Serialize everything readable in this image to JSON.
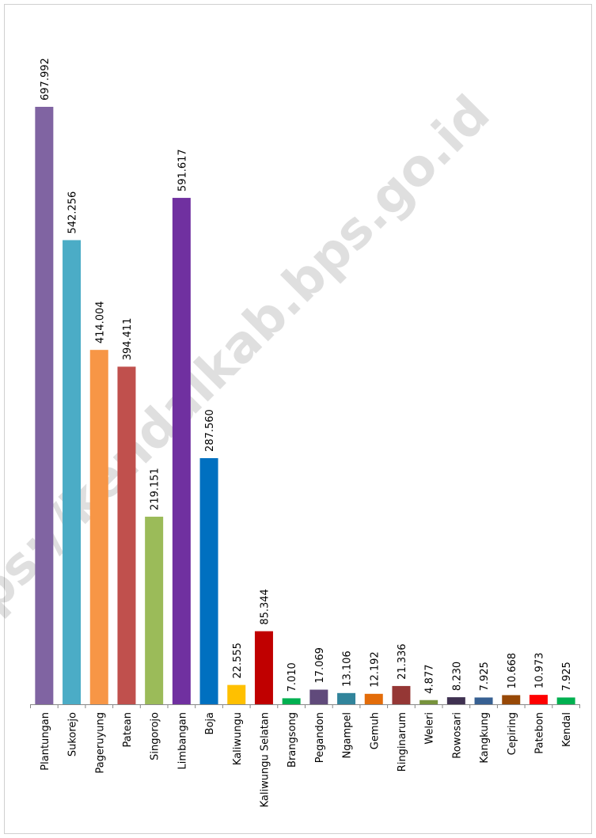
{
  "chart_data": {
    "type": "bar",
    "watermark": "https://kendalkab.bps.go.id",
    "categories": [
      "Plantungan",
      "Sukorejo",
      "Pageruyung",
      "Patean",
      "Singorojo",
      "Limbangan",
      "Boja",
      "Kaliwungu",
      "Kaliwungu Selatan",
      "Brangsong",
      "Pegandon",
      "Ngampel",
      "Gemuh",
      "Ringinarum",
      "Weleri",
      "Rowosari",
      "Kangkung",
      "Cepiring",
      "Patebon",
      "Kendal"
    ],
    "values": [
      697992,
      542256,
      414004,
      394411,
      219151,
      591617,
      287560,
      22555,
      85344,
      7010,
      17069,
      13106,
      12192,
      21336,
      4877,
      8230,
      7925,
      10668,
      10973,
      7925
    ],
    "value_labels": [
      "697.992",
      "542.256",
      "414.004",
      "394.411",
      "219.151",
      "591.617",
      "287.560",
      "22.555",
      "85.344",
      "7.010",
      "17.069",
      "13.106",
      "12.192",
      "21.336",
      "4.877",
      "8.230",
      "7.925",
      "10.668",
      "10.973",
      "7.925"
    ],
    "colors": [
      "#8064a2",
      "#4bacc6",
      "#f79646",
      "#c0504d",
      "#9bbb59",
      "#7030a0",
      "#0070c0",
      "#ffc000",
      "#c00000",
      "#00b050",
      "#604a7b",
      "#31849b",
      "#e36c09",
      "#953735",
      "#77933c",
      "#3f3151",
      "#376092",
      "#974806",
      "#ff0000",
      "#00b050"
    ]
  }
}
